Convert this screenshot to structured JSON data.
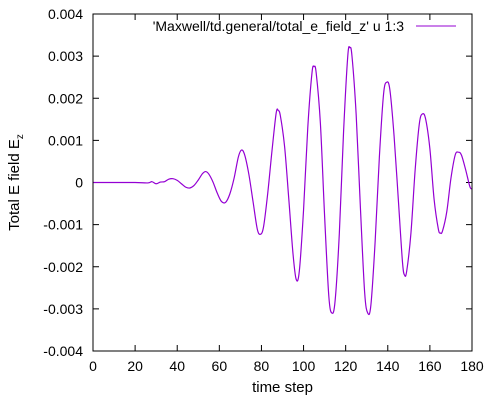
{
  "chart_data": {
    "type": "line",
    "title": "",
    "xlabel": "time step",
    "ylabel": "Total E field E",
    "ylabel_subscript": "z",
    "xlim": [
      0,
      180
    ],
    "ylim": [
      -0.004,
      0.004
    ],
    "xticks": [
      0,
      20,
      40,
      60,
      80,
      100,
      120,
      140,
      160,
      180
    ],
    "xtick_labels": [
      "0",
      "20",
      "40",
      "60",
      "80",
      "100",
      "120",
      "140",
      "160",
      "180"
    ],
    "yticks": [
      -0.004,
      -0.003,
      -0.002,
      -0.001,
      0,
      0.001,
      0.002,
      0.003,
      0.004
    ],
    "ytick_labels": [
      "-0.004",
      "-0.003",
      "-0.002",
      "-0.001",
      "0",
      "0.001",
      "0.002",
      "0.003",
      "0.004"
    ],
    "grid": false,
    "legend_position": "top-right",
    "series": [
      {
        "name": "'Maxwell/td.general/total_e_field_z' u 1:3",
        "color": "#9400d3",
        "x": [
          0,
          10,
          20,
          26,
          28,
          30,
          32,
          34,
          36,
          38,
          40,
          42,
          44,
          46,
          48,
          50,
          52,
          53.5,
          55,
          57,
          59,
          61,
          63,
          65,
          67,
          69,
          70.5,
          72,
          74,
          76,
          78,
          79.5,
          81,
          83,
          85,
          87,
          88,
          89,
          91,
          93,
          95,
          96.5,
          98,
          100,
          102,
          104,
          105,
          106,
          108,
          110,
          112,
          113.5,
          115,
          117,
          119,
          121,
          122,
          123,
          125,
          127,
          129,
          130.5,
          132,
          134,
          136,
          138,
          139.5,
          141,
          143,
          145,
          147,
          148,
          149,
          151,
          153,
          155,
          156.5,
          158,
          160,
          162,
          164,
          165,
          166,
          168,
          170,
          172,
          173.5,
          175,
          177,
          179,
          180
        ],
        "y": [
          0,
          0,
          0,
          -1e-05,
          2e-05,
          -3e-05,
          1e-05,
          2e-05,
          8e-05,
          9e-05,
          5e-05,
          -3e-05,
          -0.00011,
          -0.00013,
          -7e-05,
          6e-05,
          0.00021,
          0.00026,
          0.0002,
          1e-05,
          -0.00025,
          -0.00045,
          -0.00047,
          -0.00027,
          0.0001,
          0.0006,
          0.00077,
          0.00066,
          0.0002,
          -0.00045,
          -0.0011,
          -0.00123,
          -0.00105,
          -0.00025,
          0.00075,
          0.00165,
          0.00171,
          0.00158,
          0.00085,
          -0.0004,
          -0.0017,
          -0.0023,
          -0.0021,
          -0.00065,
          0.0013,
          0.0026,
          0.00275,
          0.0026,
          0.0014,
          -0.0008,
          -0.0027,
          -0.0031,
          -0.0028,
          -0.0012,
          0.0012,
          0.003,
          0.0032,
          0.003,
          0.0016,
          -0.0006,
          -0.0026,
          -0.0031,
          -0.0029,
          -0.0014,
          0.0006,
          0.0021,
          0.00238,
          0.0022,
          0.0011,
          -0.0004,
          -0.0019,
          -0.0022,
          -0.0021,
          -0.0012,
          0.0003,
          0.0014,
          0.00163,
          0.0015,
          0.0008,
          -0.0004,
          -0.0011,
          -0.0012,
          -0.00115,
          -0.0007,
          0.0001,
          0.00065,
          0.00072,
          0.00065,
          0.0003,
          -0.0001,
          -0.00015
        ]
      }
    ]
  }
}
